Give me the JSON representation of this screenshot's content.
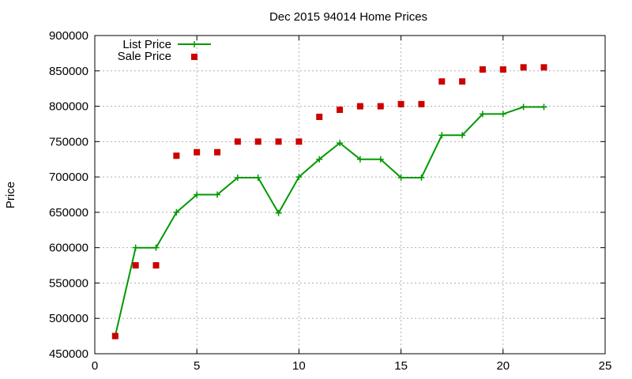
{
  "chart_data": {
    "type": "line",
    "title": "Dec 2015 94014 Home Prices",
    "xlabel": "",
    "ylabel": "Price",
    "xlim": [
      0,
      25
    ],
    "ylim": [
      450000,
      900000
    ],
    "x_ticks": [
      0,
      5,
      10,
      15,
      20,
      25
    ],
    "y_ticks": [
      450000,
      500000,
      550000,
      600000,
      650000,
      700000,
      750000,
      800000,
      850000,
      900000
    ],
    "grid": true,
    "legend": "top-left",
    "x": [
      1,
      2,
      3,
      4,
      5,
      6,
      7,
      8,
      9,
      10,
      11,
      12,
      13,
      14,
      15,
      16,
      17,
      18,
      19,
      20,
      21,
      22
    ],
    "series": [
      {
        "name": "List Price",
        "style": "line+cross",
        "color": "#009900",
        "values": [
          475000,
          600000,
          600000,
          650000,
          675000,
          675000,
          699000,
          699000,
          649000,
          700000,
          725000,
          748000,
          725000,
          725000,
          699000,
          699000,
          759000,
          759000,
          789000,
          789000,
          799000,
          799000
        ]
      },
      {
        "name": "Sale Price",
        "style": "square-points",
        "color": "#cc0000",
        "values": [
          475000,
          575000,
          575000,
          730000,
          735000,
          735000,
          750000,
          750000,
          750000,
          750000,
          785000,
          795000,
          800000,
          800000,
          803000,
          803000,
          835000,
          835000,
          852000,
          852000,
          855000,
          855000
        ]
      }
    ]
  }
}
